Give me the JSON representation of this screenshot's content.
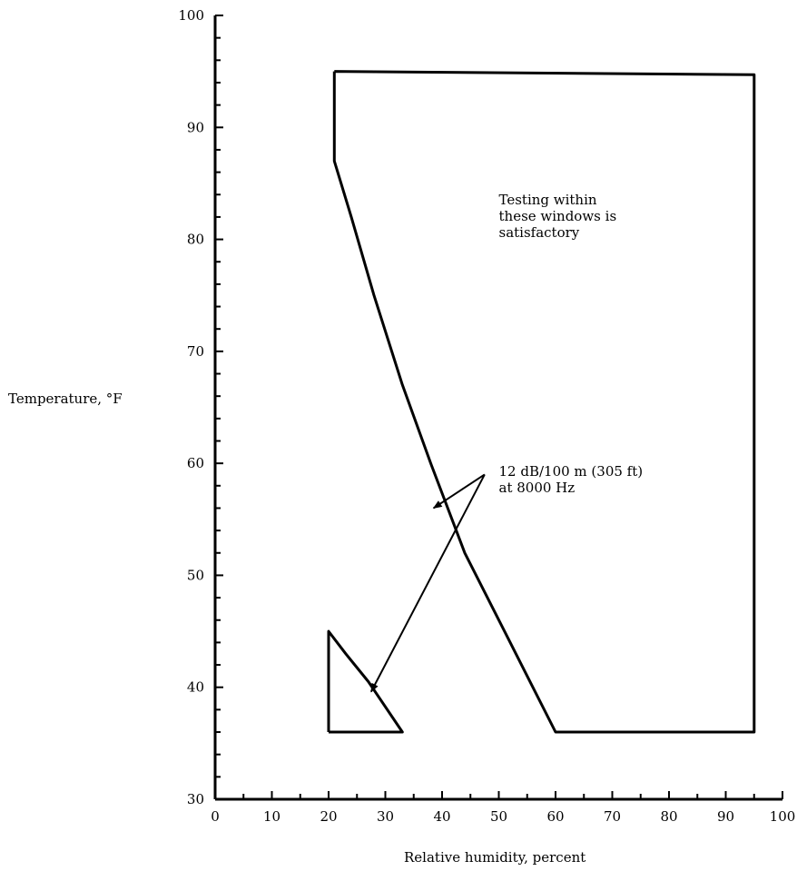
{
  "chart_data": {
    "type": "line",
    "title": "",
    "xlabel": "Relative humidity, percent",
    "ylabel": "Temperature, °F",
    "xlim": [
      0,
      100
    ],
    "ylim": [
      30,
      100
    ],
    "x_ticks": [
      0,
      10,
      20,
      30,
      40,
      50,
      60,
      70,
      80,
      90,
      100
    ],
    "y_ticks": [
      30,
      40,
      50,
      60,
      70,
      80,
      90,
      100
    ],
    "grid": false,
    "series": [
      {
        "values": [
          {
            "x": 21,
            "y": 95
          },
          {
            "x": 95,
            "y": 94.7
          },
          {
            "x": 95,
            "y": 36
          },
          {
            "x": 60,
            "y": 36
          },
          {
            "x": 51,
            "y": 45
          },
          {
            "x": 44,
            "y": 52
          },
          {
            "x": 38,
            "y": 60
          },
          {
            "x": 33,
            "y": 67
          },
          {
            "x": 28,
            "y": 75
          },
          {
            "x": 24,
            "y": 82
          },
          {
            "x": 21,
            "y": 87
          },
          {
            "x": 21,
            "y": 95
          }
        ]
      },
      {
        "values": [
          {
            "x": 20,
            "y": 36
          },
          {
            "x": 33,
            "y": 36
          },
          {
            "x": 27,
            "y": 40.5
          },
          {
            "x": 23,
            "y": 43
          },
          {
            "x": 20,
            "y": 45
          },
          {
            "x": 20,
            "y": 36
          }
        ]
      }
    ],
    "annotations": [
      {
        "lines": [
          "Testing within",
          "these windows is",
          "satisfactory"
        ],
        "x": 50,
        "y": 83.5
      },
      {
        "lines": [
          "12 dB/100 m (305 ft)",
          "at 8000 Hz"
        ],
        "x": 50,
        "y": 59.3,
        "arrows": [
          {
            "from": {
              "x": 47.5,
              "y": 59
            },
            "to": {
              "x": 38.5,
              "y": 56
            }
          },
          {
            "from": {
              "x": 47.5,
              "y": 59
            },
            "to": {
              "x": 27.5,
              "y": 39.6
            }
          }
        ]
      }
    ]
  }
}
